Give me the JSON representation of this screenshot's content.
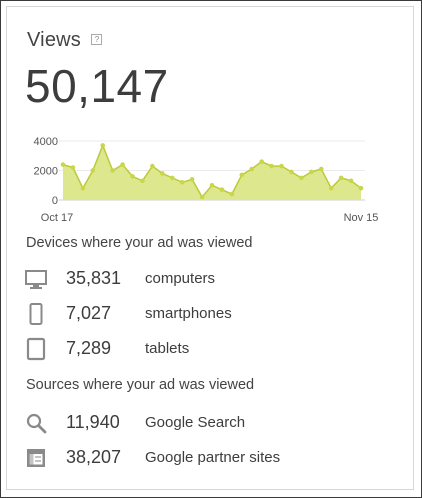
{
  "card": {
    "title": "Views",
    "help_glyph": "?",
    "total": "50,147"
  },
  "chart_data": {
    "type": "area",
    "x_start_label": "Oct 17",
    "x_end_label": "Nov 15",
    "y_ticks": [
      "4000",
      "2000",
      "0"
    ],
    "ylim": [
      0,
      4000
    ],
    "grid": true,
    "color": "#c9d64a",
    "values": [
      2400,
      2200,
      800,
      2000,
      3700,
      2000,
      2400,
      1600,
      1300,
      2300,
      1800,
      1500,
      1200,
      1400,
      200,
      1000,
      700,
      400,
      1700,
      2100,
      2600,
      2300,
      2300,
      1900,
      1500,
      1900,
      2100,
      800,
      1500,
      1300,
      800
    ]
  },
  "devices": {
    "heading": "Devices where your ad was viewed",
    "items": [
      {
        "icon": "computer-icon",
        "value": "35,831",
        "label": "computers"
      },
      {
        "icon": "smartphone-icon",
        "value": "7,027",
        "label": "smartphones"
      },
      {
        "icon": "tablet-icon",
        "value": "7,289",
        "label": "tablets"
      }
    ]
  },
  "sources": {
    "heading": "Sources where your ad was viewed",
    "items": [
      {
        "icon": "search-icon",
        "value": "11,940",
        "label": "Google Search"
      },
      {
        "icon": "partner-sites-icon",
        "value": "38,207",
        "label": "Google partner sites"
      }
    ]
  }
}
